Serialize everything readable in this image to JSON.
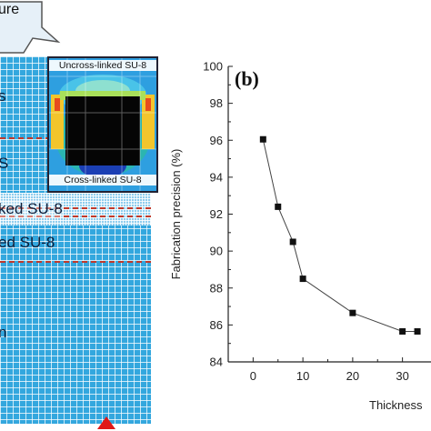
{
  "panel_a": {
    "top_label": "ure",
    "inset_top_label": "Uncross-linked SU-8",
    "inset_bottom_label": "Cross-linked SU-8",
    "labels": [
      {
        "text": "s",
        "key": "s1"
      },
      {
        "text": "S",
        "key": "s2"
      },
      {
        "text": "ked SU-8",
        "key": "k1"
      },
      {
        "text": "ed SU-8",
        "key": "k2"
      },
      {
        "text": "n",
        "key": "n1"
      }
    ]
  },
  "chart_data": {
    "type": "line",
    "panel_label": "(b)",
    "xlabel": "Thickness",
    "ylabel": "Fabrication precision (%)",
    "xlim": [
      -5,
      35
    ],
    "ylim": [
      84,
      100
    ],
    "x_ticks": [
      0,
      10,
      20,
      30
    ],
    "y_ticks": [
      84,
      86,
      88,
      90,
      92,
      94,
      96,
      98,
      100
    ],
    "x_tick_labels": [
      "0",
      "10",
      "20",
      "30"
    ],
    "y_tick_labels": [
      "84",
      "86",
      "88",
      "90",
      "92",
      "94",
      "96",
      "98",
      "100"
    ],
    "series": [
      {
        "x": [
          2,
          5,
          8,
          10,
          20,
          30,
          33
        ],
        "y": [
          96.05,
          92.4,
          90.5,
          88.5,
          86.65,
          85.65,
          85.65
        ],
        "marker": "square",
        "color": "#111111"
      }
    ]
  }
}
